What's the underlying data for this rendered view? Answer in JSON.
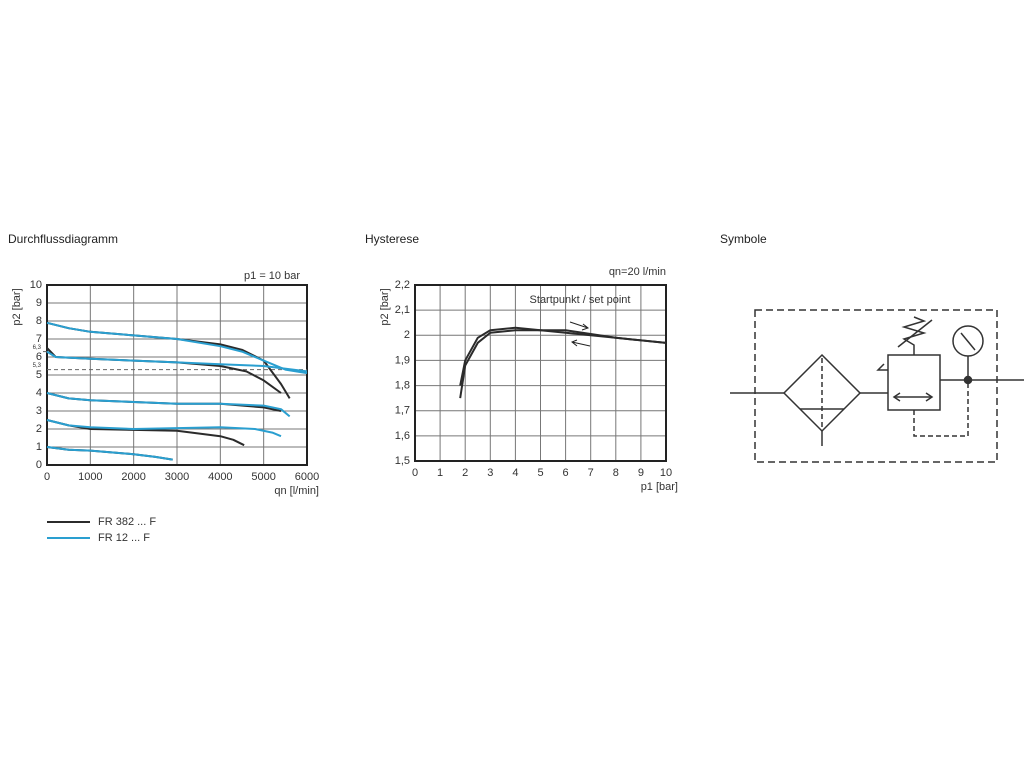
{
  "chart_data": [
    {
      "type": "line",
      "title": "Durchflussdiagramm",
      "annotation": "p1 = 10 bar",
      "x_label": "qn [l/min]",
      "y_label": "p2 [bar]",
      "xlim": [
        0,
        6000
      ],
      "xticks": [
        0,
        1000,
        2000,
        3000,
        4000,
        5000,
        6000
      ],
      "ylim": [
        0,
        10
      ],
      "yticks": [
        0,
        1,
        2,
        3,
        4,
        5,
        6,
        7,
        8,
        9,
        10
      ],
      "grid": true,
      "legend": "bottom-left",
      "reference_lines": [
        {
          "value": 6.3,
          "label": "6,3",
          "dashed": false
        },
        {
          "value": 5.3,
          "label": "5,3",
          "dashed": true
        }
      ],
      "series": [
        {
          "name": "FR 382 ... F",
          "color": "#2b2b2b",
          "lines": [
            {
              "x": [
                0,
                500,
                1000,
                2000,
                3000,
                4000,
                4500,
                5000,
                5400,
                5600
              ],
              "values": [
                7.9,
                7.6,
                7.4,
                7.2,
                7.0,
                6.7,
                6.4,
                5.8,
                4.5,
                3.7
              ]
            },
            {
              "x": [
                0,
                200,
                1000,
                2000,
                3000,
                4000,
                4600,
                5000,
                5400
              ],
              "values": [
                6.5,
                6.0,
                5.9,
                5.8,
                5.7,
                5.5,
                5.2,
                4.7,
                4.0
              ]
            },
            {
              "x": [
                0,
                500,
                1000,
                2000,
                3000,
                4000,
                5000,
                5400
              ],
              "values": [
                4.0,
                3.7,
                3.6,
                3.5,
                3.4,
                3.4,
                3.2,
                3.0
              ]
            },
            {
              "x": [
                0,
                500,
                1000,
                2000,
                3000,
                4000,
                4300,
                4550
              ],
              "values": [
                2.5,
                2.2,
                2.0,
                1.95,
                1.9,
                1.6,
                1.4,
                1.1
              ]
            },
            {
              "x": [
                0,
                500,
                1000,
                2000,
                2500,
                2900
              ],
              "values": [
                1.0,
                0.85,
                0.8,
                0.6,
                0.45,
                0.3
              ]
            }
          ]
        },
        {
          "name": "FR 12 ... F",
          "color": "#2a9fd0",
          "lines": [
            {
              "x": [
                0,
                500,
                1000,
                2000,
                3000,
                4000,
                4500,
                5000,
                5500,
                6000
              ],
              "values": [
                7.9,
                7.6,
                7.4,
                7.2,
                7.0,
                6.6,
                6.3,
                5.8,
                5.3,
                5.1
              ]
            },
            {
              "x": [
                0,
                200,
                1000,
                2000,
                3000,
                4000,
                5000,
                6000
              ],
              "values": [
                6.3,
                6.0,
                5.9,
                5.8,
                5.7,
                5.6,
                5.5,
                5.2
              ]
            },
            {
              "x": [
                0,
                500,
                1000,
                2000,
                3000,
                4000,
                5000,
                5400,
                5600
              ],
              "values": [
                4.0,
                3.7,
                3.6,
                3.5,
                3.4,
                3.4,
                3.3,
                3.1,
                2.7
              ]
            },
            {
              "x": [
                0,
                500,
                1000,
                2000,
                3000,
                4000,
                4800,
                5200,
                5400
              ],
              "values": [
                2.5,
                2.2,
                2.1,
                2.0,
                2.05,
                2.1,
                2.0,
                1.8,
                1.6
              ]
            },
            {
              "x": [
                0,
                500,
                1000,
                2000,
                2500,
                2900
              ],
              "values": [
                1.0,
                0.85,
                0.8,
                0.6,
                0.45,
                0.3
              ]
            }
          ]
        }
      ]
    },
    {
      "type": "line",
      "title": "Hysterese",
      "annotation": "qn=20 l/min",
      "note": "Startpunkt / set point",
      "x_label": "p1 [bar]",
      "y_label": "p2 [bar]",
      "xlim": [
        0,
        10
      ],
      "xticks": [
        0,
        1,
        2,
        3,
        4,
        5,
        6,
        7,
        8,
        9,
        10
      ],
      "ylim": [
        1.5,
        2.2
      ],
      "yticks": [
        {
          "value": 1.5,
          "label": "1,5"
        },
        {
          "value": 1.6,
          "label": "1,6"
        },
        {
          "value": 1.7,
          "label": "1,7"
        },
        {
          "value": 1.8,
          "label": "1,8"
        },
        {
          "value": 1.9,
          "label": "1,9"
        },
        2,
        {
          "value": 2.1,
          "label": "2,1"
        },
        {
          "value": 2.2,
          "label": "2,2"
        }
      ],
      "grid": true,
      "series": [
        {
          "color": "#2b2b2b",
          "lines": [
            {
              "x": [
                1.8,
                2,
                2.5,
                3,
                4,
                5,
                6,
                7,
                8,
                9,
                10
              ],
              "values": [
                1.75,
                1.88,
                1.97,
                2.01,
                2.02,
                2.02,
                2.01,
                2.0,
                1.99,
                1.98,
                1.97
              ]
            },
            {
              "x": [
                10,
                8,
                6,
                5,
                4,
                3,
                2.5,
                2,
                1.8
              ],
              "values": [
                1.97,
                1.99,
                2.02,
                2.02,
                2.03,
                2.02,
                1.99,
                1.9,
                1.8
              ]
            }
          ]
        }
      ]
    }
  ],
  "symbol_panel": {
    "title": "Symbole"
  }
}
